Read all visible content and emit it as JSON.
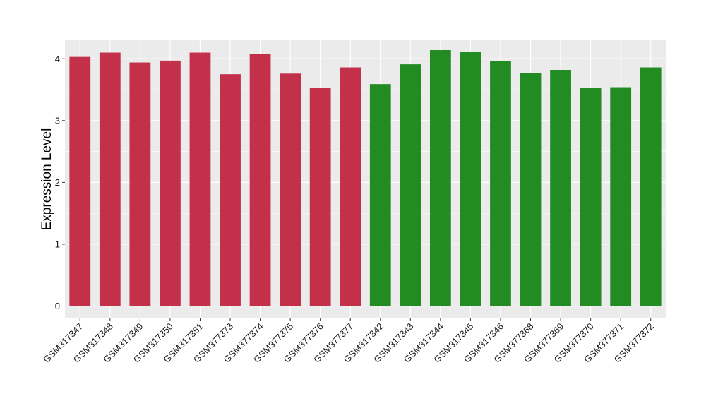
{
  "chart_data": {
    "type": "bar",
    "title": "",
    "xlabel": "",
    "ylabel": "Expression Level",
    "ylim": [
      -0.2,
      4.3
    ],
    "yticks": [
      0,
      1,
      2,
      3,
      4
    ],
    "grid": true,
    "legend": "none",
    "categories": [
      "GSM317347",
      "GSM317348",
      "GSM317349",
      "GSM317350",
      "GSM317351",
      "GSM377373",
      "GSM377374",
      "GSM377375",
      "GSM377376",
      "GSM377377",
      "GSM317342",
      "GSM317343",
      "GSM317344",
      "GSM317345",
      "GSM317346",
      "GSM377368",
      "GSM377369",
      "GSM377370",
      "GSM377371",
      "GSM377372"
    ],
    "values": [
      4.03,
      4.1,
      3.94,
      3.97,
      4.1,
      3.75,
      4.08,
      3.76,
      3.53,
      3.86,
      3.59,
      3.91,
      4.14,
      4.11,
      3.96,
      3.77,
      3.82,
      3.53,
      3.54,
      3.86
    ],
    "bar_colors": [
      "#C3304A",
      "#C3304A",
      "#C3304A",
      "#C3304A",
      "#C3304A",
      "#C3304A",
      "#C3304A",
      "#C3304A",
      "#C3304A",
      "#C3304A",
      "#228B22",
      "#228B22",
      "#228B22",
      "#228B22",
      "#228B22",
      "#228B22",
      "#228B22",
      "#228B22",
      "#228B22",
      "#228B22"
    ],
    "colors": {
      "panel_background": "#EBEBEB",
      "grid": "#FFFFFF",
      "axis_text": "#1A1A1A"
    }
  }
}
